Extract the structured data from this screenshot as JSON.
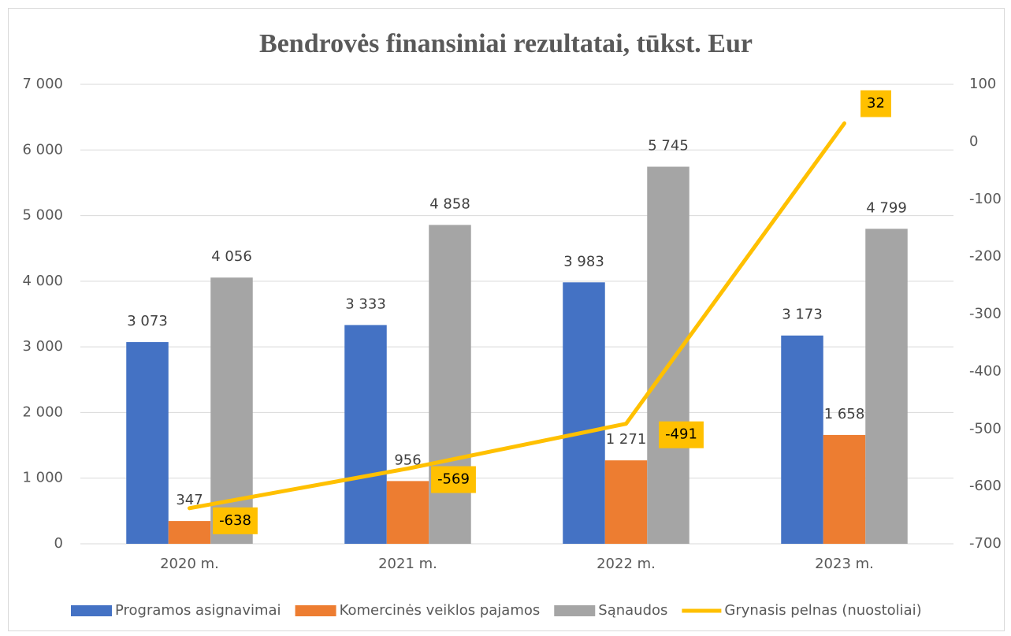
{
  "chart_data": {
    "type": "bar",
    "title": "Bendrovės finansiniai rezultatai, tūkst. Eur",
    "categories": [
      "2020 m.",
      "2021 m.",
      "2022 m.",
      "2023 m."
    ],
    "series": [
      {
        "name": "Programos asignavimai",
        "color": "#4472c4",
        "type": "bar",
        "values": [
          3073,
          3333,
          3983,
          3173
        ],
        "value_labels": [
          "3 073",
          "3 333",
          "3 983",
          "3 173"
        ]
      },
      {
        "name": "Komercinės veiklos pajamos",
        "color": "#ed7d31",
        "type": "bar",
        "values": [
          347,
          956,
          1271,
          1658
        ],
        "value_labels": [
          "347",
          "956",
          "1 271",
          "1 658"
        ]
      },
      {
        "name": "Sąnaudos",
        "color": "#a5a5a5",
        "type": "bar",
        "values": [
          4056,
          4858,
          5745,
          4799
        ],
        "value_labels": [
          "4 056",
          "4 858",
          "5 745",
          "4 799"
        ]
      },
      {
        "name": "Grynasis pelnas (nuostoliai)",
        "color": "#ffc000",
        "type": "line",
        "axis": "y2",
        "values": [
          -638,
          -569,
          -491,
          32
        ]
      }
    ],
    "ylim": [
      0,
      7000
    ],
    "yticks": [
      0,
      {
        "value": 1000,
        "label": "1 000"
      },
      {
        "value": 2000,
        "label": "2 000"
      },
      {
        "value": 3000,
        "label": "3 000"
      },
      {
        "value": 4000,
        "label": "4 000"
      },
      {
        "value": 5000,
        "label": "5 000"
      },
      {
        "value": 6000,
        "label": "6 000"
      },
      {
        "value": 7000,
        "label": "7 000"
      }
    ],
    "y2lim": [
      -700,
      100
    ],
    "y2ticks": [
      -700,
      -600,
      -500,
      -400,
      -300,
      -200,
      -100,
      0,
      100
    ],
    "grid": true,
    "legend": "bottom"
  }
}
